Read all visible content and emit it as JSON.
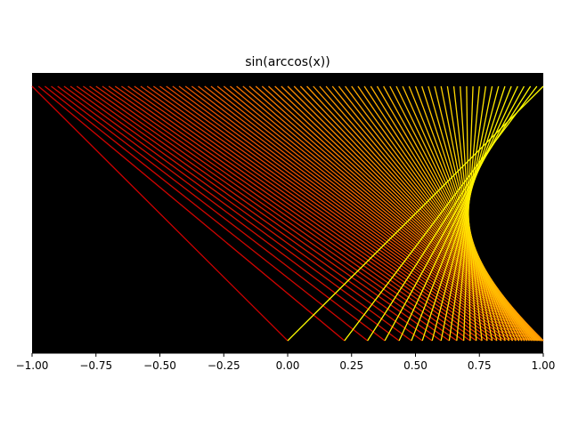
{
  "chart_data": {
    "type": "line",
    "title": "sin(arccos(x))",
    "xlabel": "",
    "ylabel": "",
    "xlim": [
      -1.0,
      1.0
    ],
    "ylim": [
      0.0,
      1.0
    ],
    "grid": false,
    "legend": "none",
    "background": "#000000",
    "colors": {
      "start": "#cc0000",
      "mid": "#ff8c00",
      "end": "#ffff00"
    },
    "x_ticks": [
      -1.0,
      -0.75,
      -0.5,
      -0.25,
      0.0,
      0.25,
      0.5,
      0.75,
      1.0
    ],
    "x_tick_labels": [
      "−1.00",
      "−0.75",
      "−0.50",
      "−0.25",
      "0.00",
      "0.25",
      "0.50",
      "0.75",
      "1.00"
    ],
    "segment_family": {
      "description_values": "segments from (a, 1) to (sqrt(1-a^2), 0) for a from -1 to 1",
      "a_min": -1.0,
      "a_max": 1.0,
      "count": 81
    }
  }
}
